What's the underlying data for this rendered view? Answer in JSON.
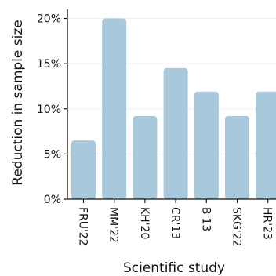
{
  "chart_data": {
    "type": "bar",
    "title": "",
    "xlabel": "Scientific study",
    "ylabel": "Reduction in sample size",
    "categories": [
      "FRU'22",
      "MM'22",
      "KH'20",
      "CR'13",
      "B'13",
      "SKG'22",
      "HR'23"
    ],
    "values": [
      6.5,
      20.0,
      9.2,
      14.5,
      11.9,
      9.2,
      11.9
    ],
    "yticks": [
      "0%",
      "5%",
      "10%",
      "15%",
      "20%"
    ],
    "ytick_values": [
      0,
      5,
      10,
      15,
      20
    ],
    "ylim": [
      0,
      21
    ],
    "grid": true,
    "bar_color": "#a8c8dc",
    "grid_color": "#eeeeee",
    "axis_color": "#111111"
  }
}
